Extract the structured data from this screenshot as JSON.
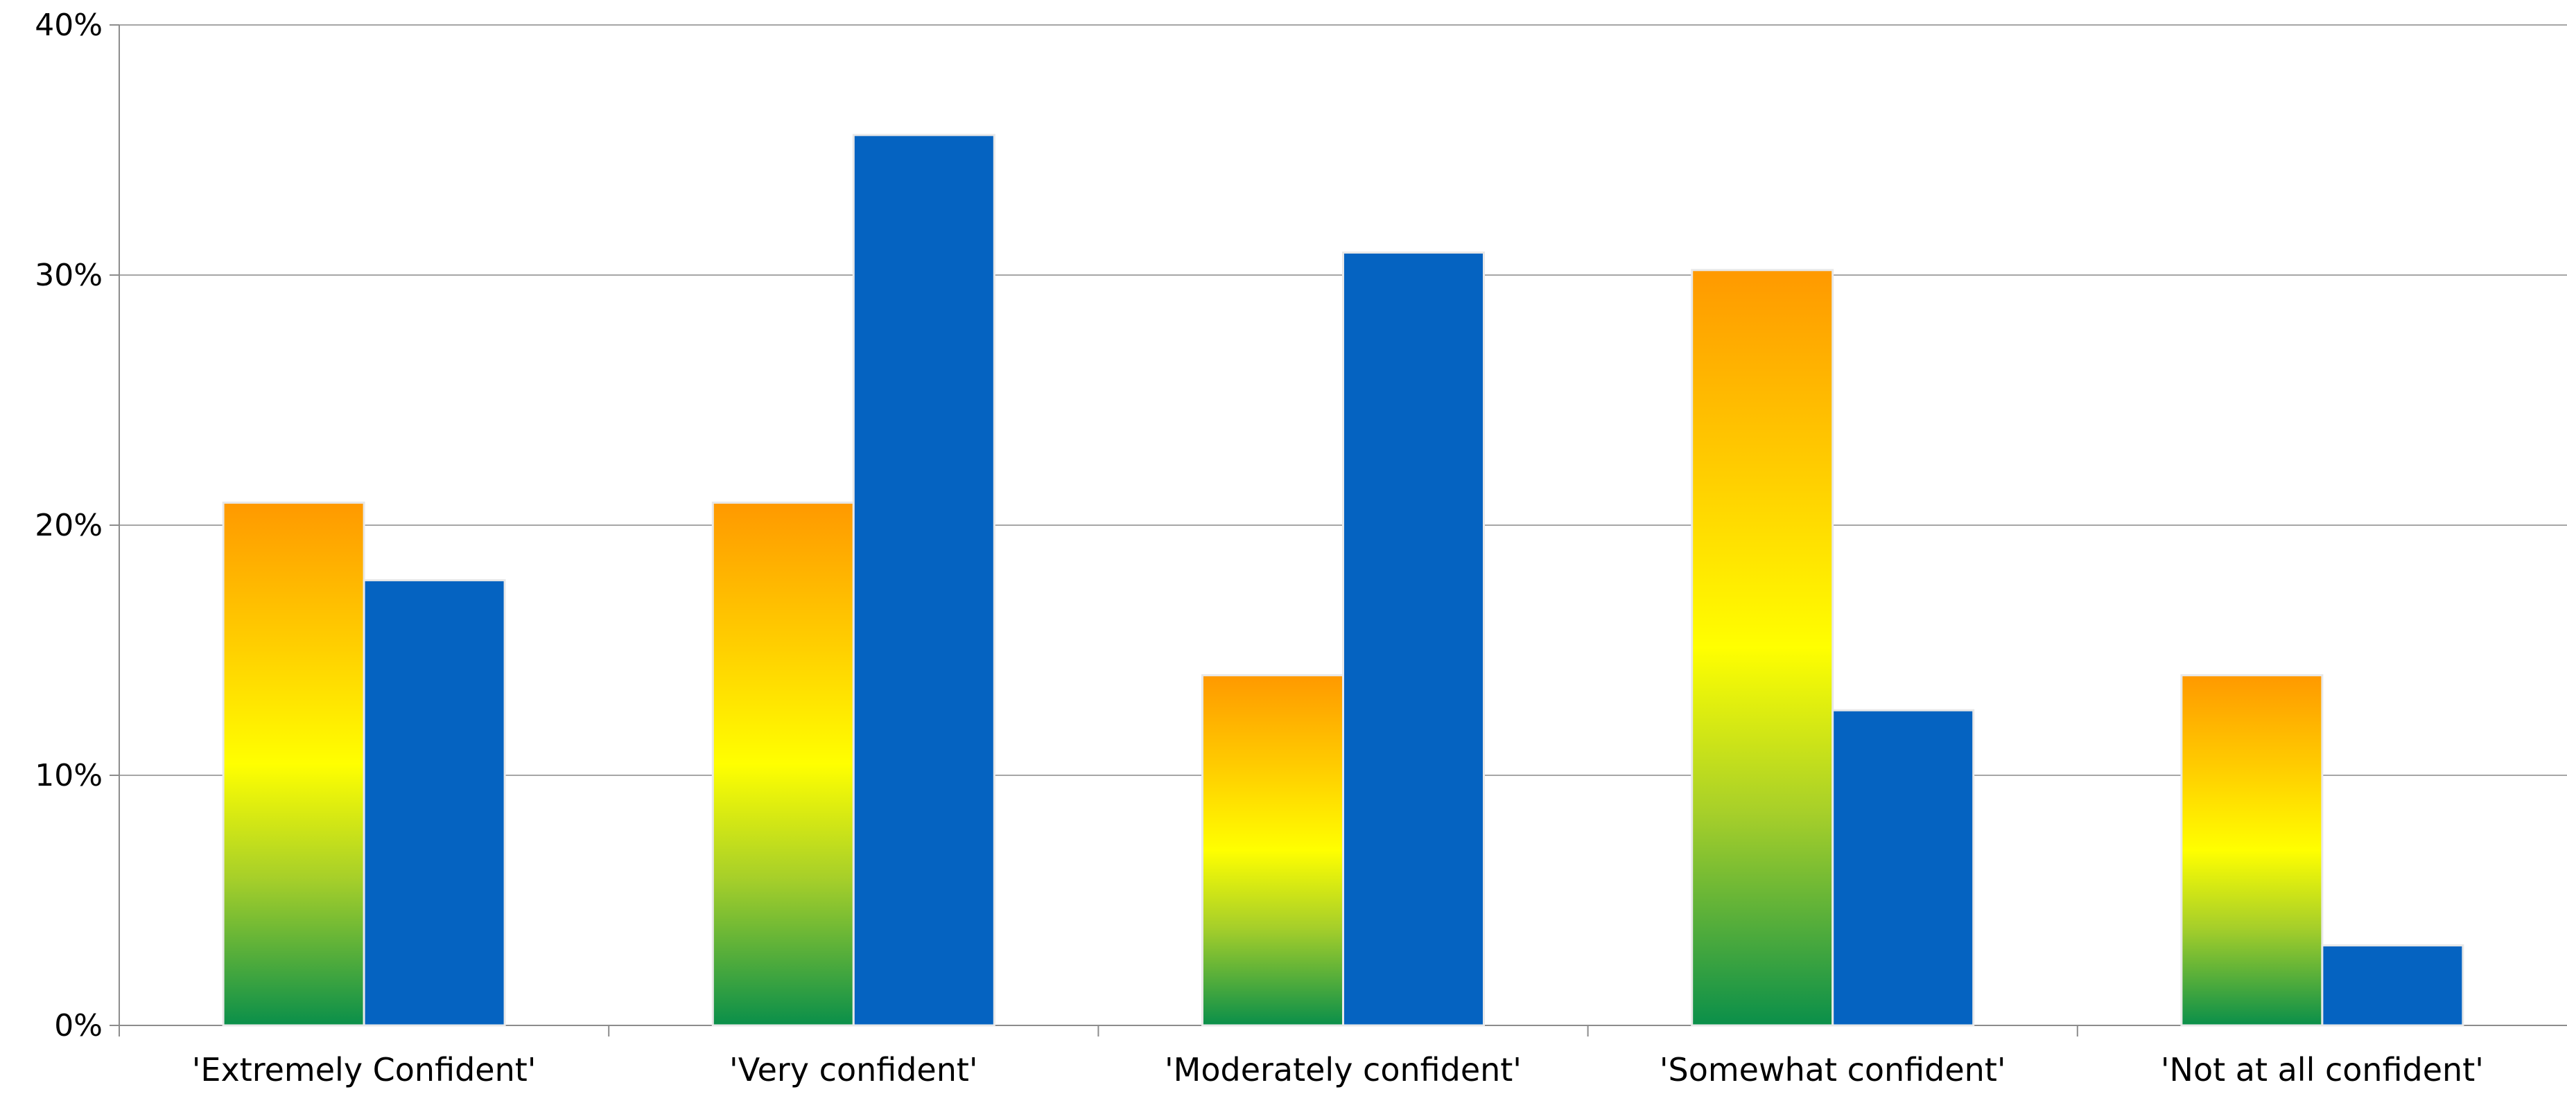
{
  "chart_data": {
    "type": "bar",
    "title": "",
    "xlabel": "",
    "ylabel": "",
    "categories": [
      "'Extremely Confident'",
      "'Very confident'",
      "'Moderately confident'",
      "'Somewhat confident'",
      "'Not at all confident'"
    ],
    "series": [
      {
        "values": [
          20.9,
          20.9,
          14.0,
          30.2,
          14.0
        ],
        "fill": "gradient",
        "colors": [
          "#ff9900",
          "#ffd000",
          "#ffff00",
          "#a6cf2a",
          "#0a8f4a"
        ]
      },
      {
        "values": [
          17.8,
          35.6,
          30.9,
          12.6,
          3.2
        ],
        "color": "#0563c1"
      }
    ],
    "ylim": [
      0,
      40
    ],
    "yticks": [
      0,
      10,
      20,
      30,
      40
    ],
    "ytick_labels": [
      "0%",
      "10%",
      "20%",
      "30%",
      "40%"
    ],
    "grid": true,
    "legend": "none"
  }
}
